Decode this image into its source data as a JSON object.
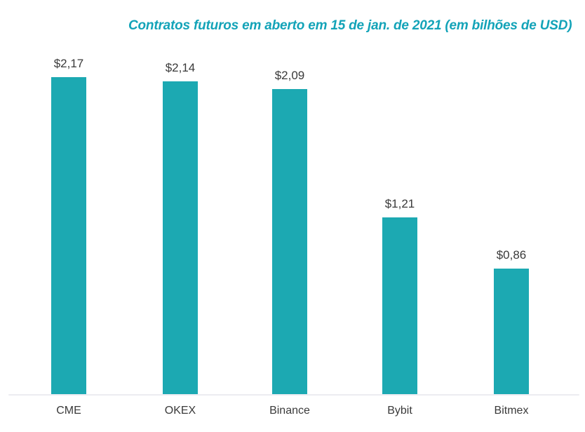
{
  "chart_data": {
    "type": "bar",
    "title": "Contratos futuros em aberto em 15 de jan. de 2021 (em bilhões de USD)",
    "categories": [
      "CME",
      "OKEX",
      "Binance",
      "Bybit",
      "Bitmex"
    ],
    "values": [
      2.17,
      2.14,
      2.09,
      1.21,
      0.86
    ],
    "value_labels": [
      "$2,17",
      "$2,14",
      "$2,09",
      "$1,21",
      "$0,86"
    ],
    "xlabel": "",
    "ylabel": "",
    "ylim": [
      0,
      2.2
    ],
    "grid": false,
    "legend": false,
    "colors": {
      "bar": "#1CA9B2",
      "title": "#13A3B8",
      "text": "#3A3A3A",
      "axis_line": "#ECECF1"
    }
  }
}
